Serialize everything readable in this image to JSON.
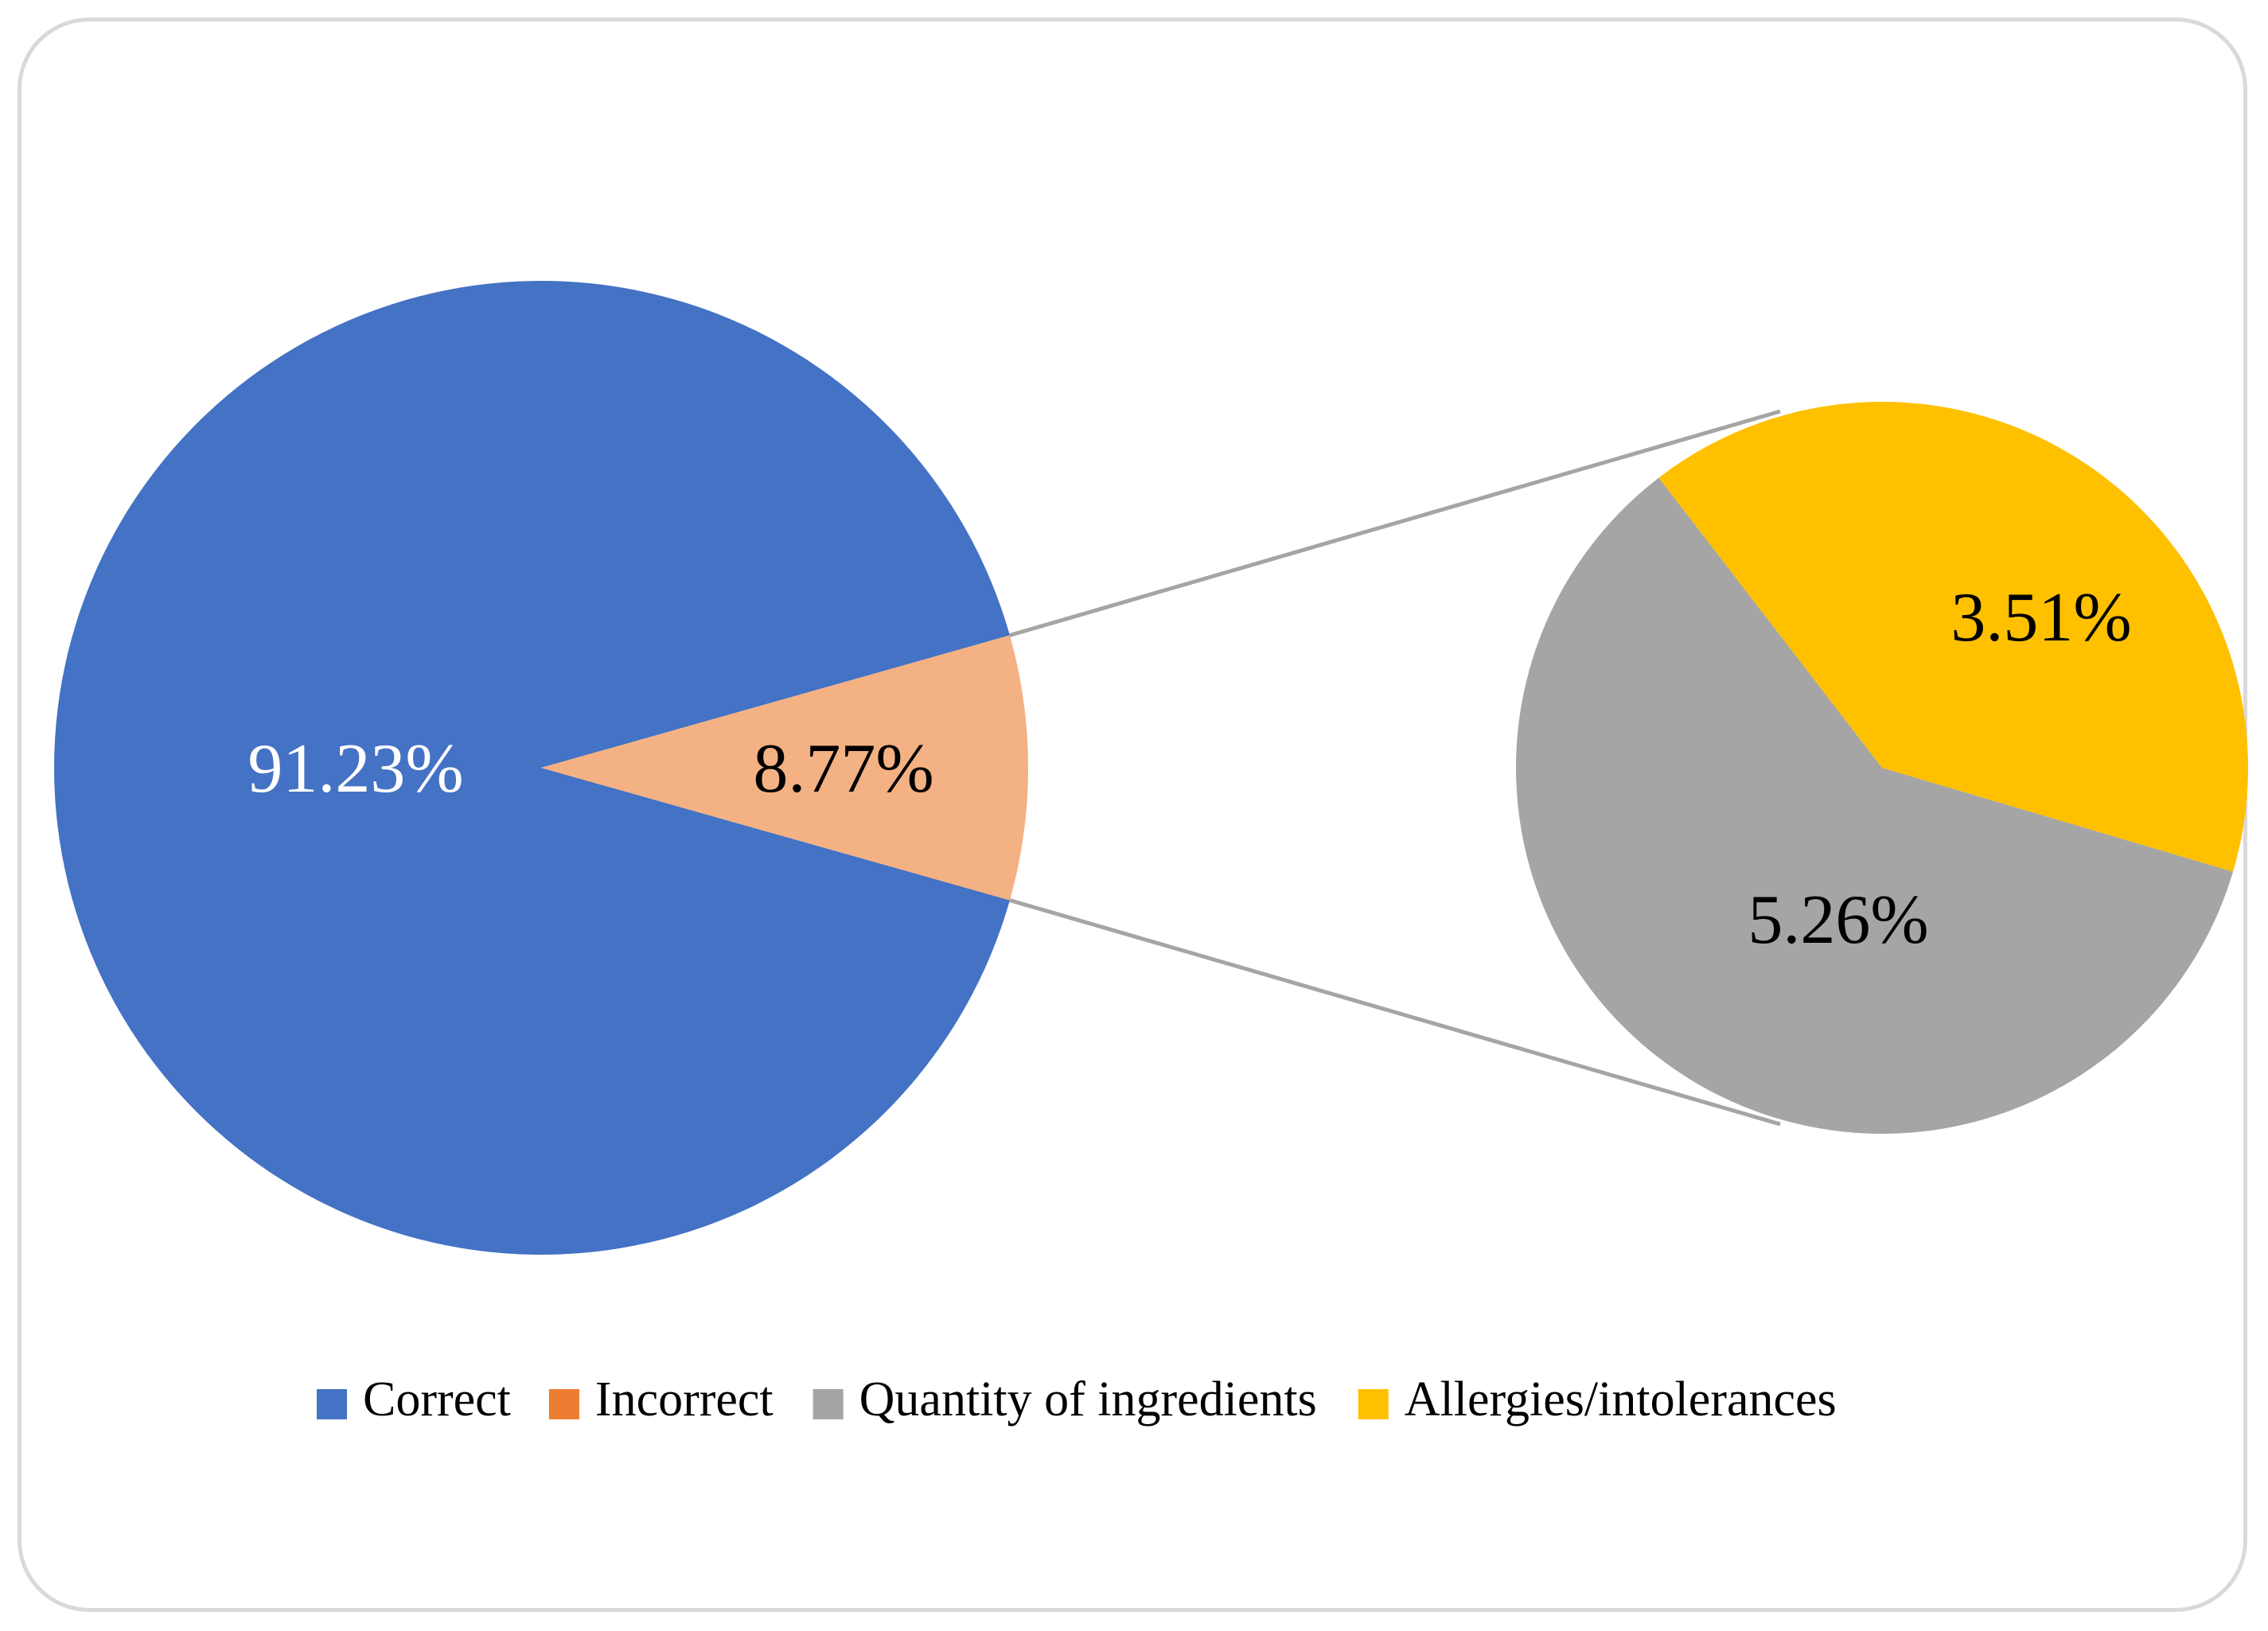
{
  "chart_data": {
    "type": "pie",
    "subtype": "pie-of-pie",
    "title": "",
    "main_pie": {
      "slices": [
        {
          "name": "Correct",
          "value": 91.23,
          "label": "91.23%",
          "color": "#4472c4",
          "label_color": "#ffffff"
        },
        {
          "name": "Incorrect",
          "value": 8.77,
          "label": "8.77%",
          "color": "#f4b183",
          "label_color": "#000000"
        }
      ]
    },
    "secondary_pie": {
      "breakdown_of": "Incorrect",
      "slices": [
        {
          "name": "Quantity of ingredients",
          "value": 5.26,
          "label": "5.26%",
          "color": "#a5a5a5",
          "label_color": "#000000"
        },
        {
          "name": "Allergies/intolerances",
          "value": 3.51,
          "label": "3.51%",
          "color": "#ffc000",
          "label_color": "#000000"
        }
      ]
    },
    "legend": {
      "position": "bottom",
      "entries": [
        {
          "name": "Correct",
          "color": "#4472c4"
        },
        {
          "name": "Incorrect",
          "color": "#ed7d31"
        },
        {
          "name": "Quantity of ingredients",
          "color": "#a5a5a5"
        },
        {
          "name": "Allergies/intolerances",
          "color": "#ffc000"
        }
      ]
    },
    "connector_color": "#a5a5a5"
  }
}
